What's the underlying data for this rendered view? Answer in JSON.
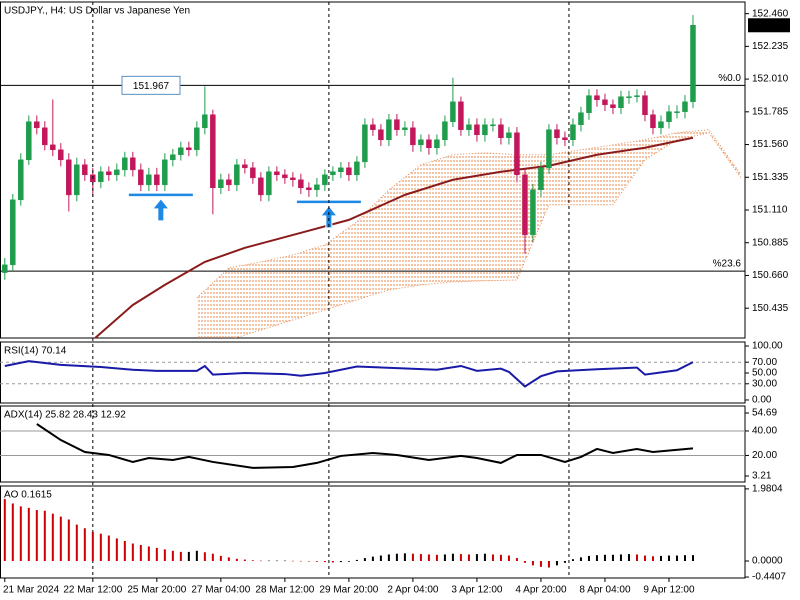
{
  "chart_data": [
    {
      "type": "candlestick",
      "title": "USDJPY., H4:  US Dollar vs Japanese Yen",
      "up_color": "#1f9d4c",
      "down_color": "#c2185b",
      "open": [
        150.68,
        150.733,
        151.18,
        151.455,
        151.717,
        151.675,
        151.558,
        151.524,
        151.455,
        151.214,
        151.421,
        151.352,
        151.304,
        151.373,
        151.352,
        151.386,
        151.469,
        151.386,
        151.283,
        151.352,
        151.283,
        151.455,
        151.49,
        151.538,
        151.524,
        151.675,
        151.765,
        151.263,
        151.318,
        151.283,
        151.421,
        151.4,
        151.331,
        151.214,
        151.373,
        151.352,
        151.331,
        151.318,
        151.263,
        151.249,
        151.283,
        151.352,
        151.373,
        151.4,
        151.352,
        151.441,
        151.696,
        151.662,
        151.593,
        151.731,
        151.662,
        151.675,
        151.558,
        151.593,
        151.538,
        151.593,
        151.717,
        151.854,
        151.662,
        151.696,
        151.627,
        151.696,
        151.696,
        151.607,
        151.641,
        151.352,
        150.939,
        151.249,
        151.4,
        151.662,
        151.607,
        151.593,
        151.696,
        151.779,
        151.896,
        151.868,
        151.834,
        151.813,
        151.889,
        151.889,
        151.896,
        151.765,
        151.675,
        151.717,
        151.786,
        151.786,
        151.854
      ],
      "high": [
        150.78,
        151.22,
        151.5,
        151.76,
        151.76,
        151.72,
        151.87,
        151.57,
        151.5,
        151.47,
        151.46,
        151.4,
        151.41,
        151.41,
        151.43,
        151.51,
        151.51,
        151.43,
        151.4,
        151.4,
        151.5,
        151.53,
        151.58,
        151.58,
        151.72,
        151.96,
        151.8,
        151.36,
        151.36,
        151.46,
        151.46,
        151.44,
        151.37,
        151.41,
        151.41,
        151.39,
        151.37,
        151.36,
        151.3,
        151.33,
        151.39,
        151.41,
        151.44,
        151.44,
        151.48,
        151.74,
        151.74,
        151.7,
        151.77,
        151.77,
        151.72,
        151.72,
        151.63,
        151.63,
        151.63,
        151.76,
        152.02,
        151.89,
        151.74,
        151.74,
        151.74,
        151.74,
        151.74,
        151.68,
        151.68,
        151.39,
        151.29,
        151.44,
        151.7,
        151.7,
        151.65,
        151.74,
        151.82,
        151.94,
        151.94,
        151.91,
        151.87,
        151.93,
        151.93,
        151.94,
        151.93,
        151.8,
        151.76,
        151.83,
        151.83,
        151.9,
        152.45
      ],
      "low": [
        150.63,
        150.69,
        151.14,
        151.42,
        151.63,
        151.52,
        151.48,
        151.41,
        151.1,
        151.17,
        151.31,
        151.2,
        151.26,
        151.31,
        151.31,
        151.34,
        151.34,
        151.24,
        151.24,
        151.24,
        151.24,
        151.41,
        151.45,
        151.48,
        151.48,
        151.63,
        151.08,
        151.22,
        151.24,
        151.24,
        151.36,
        151.29,
        151.17,
        151.17,
        151.31,
        151.29,
        151.27,
        151.22,
        151.2,
        151.2,
        151.24,
        151.31,
        151.33,
        151.31,
        151.31,
        151.4,
        151.62,
        151.55,
        151.55,
        151.62,
        151.62,
        151.51,
        151.51,
        151.49,
        151.49,
        151.55,
        151.68,
        151.62,
        151.62,
        151.58,
        151.58,
        151.65,
        151.56,
        151.56,
        151.3,
        150.81,
        150.89,
        151.2,
        151.36,
        151.56,
        151.55,
        151.55,
        151.65,
        151.73,
        151.82,
        151.79,
        151.77,
        151.77,
        151.84,
        151.85,
        151.72,
        151.63,
        151.63,
        151.67,
        151.74,
        151.74,
        151.81
      ],
      "close": [
        150.733,
        151.18,
        151.455,
        151.717,
        151.675,
        151.558,
        151.524,
        151.455,
        151.214,
        151.421,
        151.352,
        151.304,
        151.373,
        151.352,
        151.386,
        151.469,
        151.386,
        151.283,
        151.352,
        151.283,
        151.455,
        151.49,
        151.538,
        151.524,
        151.675,
        151.765,
        151.263,
        151.318,
        151.283,
        151.421,
        151.4,
        151.331,
        151.214,
        151.373,
        151.352,
        151.331,
        151.318,
        151.263,
        151.249,
        151.283,
        151.352,
        151.373,
        151.4,
        151.352,
        151.441,
        151.696,
        151.662,
        151.593,
        151.731,
        151.662,
        151.675,
        151.558,
        151.593,
        151.538,
        151.593,
        151.717,
        151.854,
        151.662,
        151.696,
        151.627,
        151.696,
        151.696,
        151.607,
        151.641,
        151.352,
        150.939,
        151.249,
        151.4,
        151.662,
        151.607,
        151.593,
        151.696,
        151.779,
        151.896,
        151.868,
        151.834,
        151.813,
        151.889,
        151.889,
        151.896,
        151.765,
        151.675,
        151.717,
        151.786,
        151.786,
        151.854,
        152.38
      ],
      "overlays": [
        {
          "color": "#8b1c1c",
          "x": [
            11,
            16,
            20,
            25,
            30,
            37,
            43,
            50,
            56,
            62,
            68,
            74,
            80,
            86
          ],
          "values": [
            150.216,
            150.457,
            150.595,
            150.753,
            150.85,
            150.953,
            151.042,
            151.214,
            151.318,
            151.373,
            151.414,
            151.49,
            151.538,
            151.607
          ]
        }
      ],
      "cloud": {
        "color": "#e8894f",
        "x": [
          24,
          28,
          32,
          36,
          40,
          44,
          48,
          52,
          56,
          60,
          64,
          68,
          72,
          76,
          80,
          84,
          88,
          92
        ],
        "upper": [
          150.506,
          150.712,
          150.753,
          150.801,
          150.87,
          151.029,
          151.249,
          151.421,
          151.49,
          151.503,
          151.49,
          151.49,
          151.524,
          151.558,
          151.593,
          151.641,
          151.662,
          151.352
        ],
        "lower": [
          150.182,
          150.216,
          150.285,
          150.354,
          150.423,
          150.492,
          150.561,
          150.595,
          150.616,
          150.623,
          150.629,
          151.146,
          151.146,
          151.146,
          151.455,
          151.593,
          151.641,
          151.331
        ]
      },
      "levels": [
        {
          "value": 151.967,
          "label": "%0.0"
        },
        {
          "value": 150.69,
          "label": "%23.6"
        }
      ],
      "level_color": "#000000",
      "markers": [
        {
          "x": 19.5,
          "value": 151.214
        },
        {
          "x": 40.5,
          "value": 151.166
        }
      ],
      "marker_color": "#1e88e5",
      "last_price": {
        "value": 152.38,
        "label": "152.380"
      },
      "xlim": [
        -0.6,
        92.5
      ],
      "ylim": [
        150.23,
        152.54
      ],
      "yticks": [
        {
          "value": 152.46,
          "label": "152.460"
        },
        152.235,
        {
          "value": 152.01,
          "label": "152.010"
        },
        151.785,
        {
          "value": 151.56,
          "label": "151.560"
        },
        151.335,
        {
          "value": 151.11,
          "label": "151.110"
        },
        150.885,
        {
          "value": 150.66,
          "label": "150.660"
        },
        150.435
      ],
      "xticks": [
        {
          "value": 0,
          "label": "21 Mar 2024"
        },
        {
          "value": 11,
          "label": "22 Mar 12:00"
        },
        {
          "value": 19,
          "label": "25 Mar 20:00"
        },
        {
          "value": 27,
          "label": "27 Mar 04:00"
        },
        {
          "value": 35,
          "label": "28 Mar 12:00"
        },
        {
          "value": 43,
          "label": "29 Mar 20:00"
        },
        {
          "value": 51,
          "label": "2 Apr 04:00"
        },
        {
          "value": 59,
          "label": "3 Apr 12:00"
        },
        {
          "value": 67,
          "label": "4 Apr 20:00"
        },
        {
          "value": 75,
          "label": "8 Apr 04:00"
        },
        {
          "value": 83,
          "label": "9 Apr 12:00"
        }
      ],
      "xgrid": [
        11,
        40.5,
        70.5
      ]
    },
    {
      "type": "line",
      "title": "RSI(14) 70.14",
      "color": "#1a1aa8",
      "x": [
        0,
        3,
        7,
        12,
        16,
        19,
        24,
        25,
        26,
        30,
        35,
        37,
        40,
        44,
        49,
        54,
        57,
        59,
        62,
        63,
        65,
        67,
        69,
        74,
        79,
        80,
        84,
        86
      ],
      "values": [
        63,
        72,
        65,
        61,
        56,
        54,
        54,
        63,
        47,
        50,
        48,
        45,
        50,
        62,
        59,
        56,
        63,
        54,
        58,
        52,
        25,
        44,
        53,
        57,
        60,
        47,
        55,
        70.14
      ],
      "levels": [
        30,
        70
      ],
      "xlim": [
        -0.6,
        92.5
      ],
      "ylim": [
        -5.6,
        107.4
      ],
      "yticks": [
        {
          "value": 100,
          "label": "100.00"
        },
        {
          "value": 70,
          "label": "70.00"
        },
        {
          "value": 50,
          "label": "50.00"
        },
        {
          "value": 30,
          "label": "30.00"
        },
        {
          "value": 0,
          "label": "0.00"
        }
      ]
    },
    {
      "type": "line",
      "title": "ADX(14) 25.82 28.43 12.92",
      "color": "#000000",
      "x": [
        4,
        7,
        10,
        13,
        16,
        18,
        21,
        23,
        26,
        31,
        36,
        39,
        42,
        46,
        49,
        53,
        57,
        59,
        62,
        64,
        67,
        70,
        72,
        74,
        76,
        79,
        81,
        86
      ],
      "values": [
        45.7,
        32.6,
        22.8,
        20.4,
        14.7,
        17.9,
        16.3,
        18.8,
        14.7,
        9.8,
        10.6,
        13.9,
        19.6,
        22.0,
        20.4,
        16.3,
        19.6,
        17.9,
        13.9,
        20.4,
        20.4,
        14.7,
        18.8,
        25.3,
        22.0,
        25.3,
        22.8,
        25.82
      ],
      "levels": [
        20,
        40
      ],
      "xlim": [
        -0.6,
        92.5
      ],
      "ylim": [
        -1.7,
        60.4
      ],
      "yticks": [
        54.69,
        {
          "value": 40,
          "label": "40.00"
        },
        {
          "value": 20,
          "label": "20.00"
        },
        3.21
      ]
    },
    {
      "type": "bar",
      "title": "AO 0.1615",
      "up_color": "#000000",
      "down_color": "#cc0000",
      "values": [
        1.7,
        1.58,
        1.5,
        1.46,
        1.4,
        1.38,
        1.3,
        1.22,
        1.14,
        1.0,
        0.9,
        0.8,
        0.75,
        0.7,
        0.62,
        0.55,
        0.48,
        0.44,
        0.4,
        0.36,
        0.32,
        0.28,
        0.25,
        0.25,
        0.28,
        0.24,
        0.2,
        0.14,
        0.1,
        0.06,
        0.04,
        0.02,
        0.01,
        0.01,
        0.01,
        0.01,
        0.005,
        0.003,
        -0.01,
        -0.02,
        -0.03,
        -0.04,
        -0.03,
        -0.02,
        0.03,
        0.08,
        0.12,
        0.15,
        0.18,
        0.2,
        0.21,
        0.2,
        0.19,
        0.18,
        0.17,
        0.18,
        0.2,
        0.19,
        0.18,
        0.19,
        0.2,
        0.18,
        0.17,
        0.15,
        0.08,
        -0.05,
        -0.12,
        -0.16,
        -0.18,
        -0.12,
        -0.05,
        0.05,
        0.1,
        0.14,
        0.16,
        0.17,
        0.17,
        0.18,
        0.19,
        0.18,
        0.15,
        0.13,
        0.14,
        0.15,
        0.15,
        0.16,
        0.1615
      ],
      "xlim": [
        -0.6,
        92.5
      ],
      "ylim": [
        -0.467,
        2.06
      ],
      "yticks": [
        1.9804,
        {
          "value": 0,
          "label": "0.0000"
        },
        -0.4407
      ]
    }
  ]
}
